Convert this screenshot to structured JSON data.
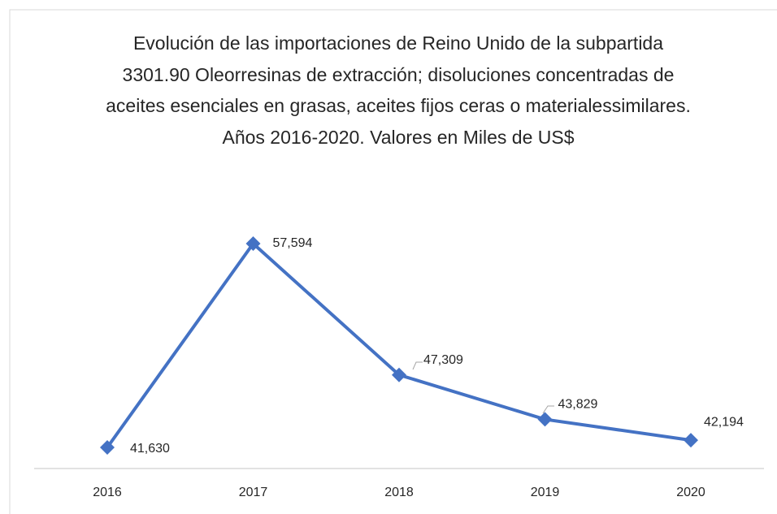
{
  "chart_data": {
    "type": "line",
    "title": "Evolución de las importaciones de Reino Unido de la subpartida 3301.90 Oleorresinas de extracción; disoluciones concentradas de aceites esenciales en grasas, aceites fijos ceras o materialessimilares. Años 2016-2020. Valores en Miles de US$",
    "categories": [
      "2016",
      "2017",
      "2018",
      "2019",
      "2020"
    ],
    "series": [
      {
        "name": "Importaciones",
        "color": "#4472c4",
        "values": [
          41630,
          57594,
          47309,
          43829,
          42194
        ],
        "value_labels": [
          "41,630",
          "57,594",
          "47,309",
          "43,829",
          "42,194"
        ]
      }
    ]
  }
}
